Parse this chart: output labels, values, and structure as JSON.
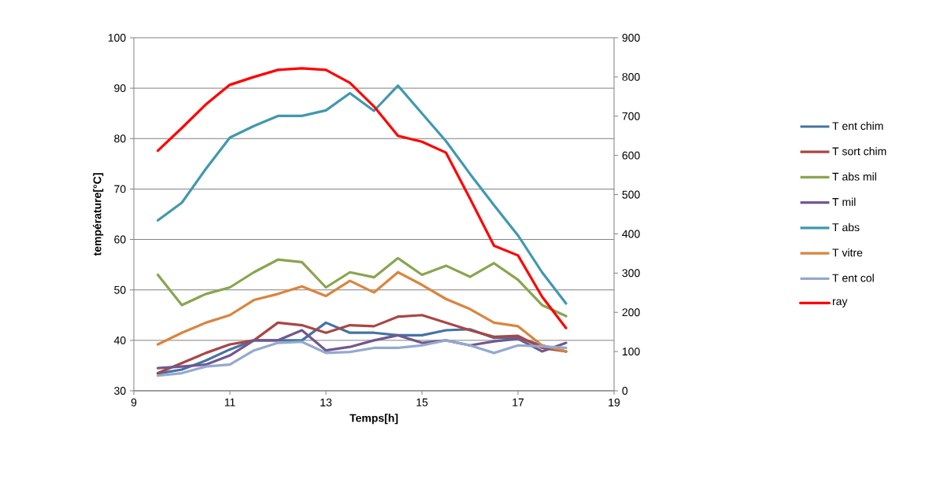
{
  "chart_data": {
    "type": "line",
    "xlabel": "Temps[h]",
    "ylabel": "température[°C]",
    "x": [
      9.5,
      10,
      10.5,
      11,
      11.5,
      12,
      12.5,
      13,
      13.5,
      14,
      14.5,
      15,
      15.5,
      16,
      16.5,
      17,
      17.5,
      18
    ],
    "xlim": [
      9,
      19
    ],
    "xticks": [
      9,
      11,
      13,
      15,
      17,
      19
    ],
    "ylim": [
      30,
      100
    ],
    "yticks": [
      30,
      40,
      50,
      60,
      70,
      80,
      90,
      100
    ],
    "y2lim": [
      0,
      900
    ],
    "y2ticks": [
      0,
      100,
      200,
      300,
      400,
      500,
      600,
      700,
      800,
      900
    ],
    "grid": "y",
    "legend": "right",
    "marker": "none",
    "line_style": "solid",
    "series": [
      {
        "name": "T ent chim",
        "color": "#4572a7",
        "values": [
          33.4,
          34.2,
          36,
          38.2,
          40,
          40,
          40,
          43.5,
          41.5,
          41.5,
          41,
          41,
          42,
          42.2,
          40.5,
          40.5,
          39,
          37.8
        ]
      },
      {
        "name": "T sort chim",
        "color": "#aa4643",
        "values": [
          33.5,
          35.5,
          37.5,
          39.2,
          40,
          43.5,
          43,
          41.5,
          43,
          42.8,
          44.7,
          45,
          43.5,
          42,
          40.7,
          40.9,
          38.5,
          37.8
        ]
      },
      {
        "name": "T abs mil",
        "color": "#89a54e",
        "values": [
          53,
          47,
          49.2,
          50.5,
          53.5,
          56,
          55.5,
          50.5,
          53.5,
          52.5,
          56.3,
          53,
          54.8,
          52.6,
          55.3,
          52,
          47,
          44.8
        ]
      },
      {
        "name": "T mil",
        "color": "#71588f",
        "values": [
          34.5,
          34.8,
          35.2,
          37,
          40,
          40,
          42,
          38,
          38.7,
          40,
          41,
          39.5,
          40,
          39,
          39.8,
          40.3,
          37.8,
          39.5
        ]
      },
      {
        "name": "T abs",
        "color": "#4198af",
        "values": [
          63.8,
          67.3,
          74,
          80.2,
          82.5,
          84.5,
          84.5,
          85.6,
          89,
          85.5,
          90.5,
          85,
          79.5,
          73,
          66.8,
          60.8,
          53.5,
          47.3
        ]
      },
      {
        "name": "T vitre",
        "color": "#db843d",
        "values": [
          39.2,
          41.5,
          43.5,
          45,
          48,
          49.2,
          50.7,
          48.8,
          51.8,
          49.5,
          53.5,
          51,
          48.2,
          46.2,
          43.5,
          42.8,
          39,
          37.8
        ]
      },
      {
        "name": "T ent col",
        "color": "#93a9cf",
        "values": [
          33,
          33.5,
          34.8,
          35.2,
          38,
          39.5,
          39.7,
          37.5,
          37.7,
          38.5,
          38.5,
          39,
          40,
          39,
          37.5,
          39,
          38.8,
          38.5
        ]
      },
      {
        "name": "ray",
        "color": "#ff0000",
        "axis": "y2",
        "values": [
          612,
          670,
          730,
          780,
          800,
          818,
          822,
          818,
          785,
          725,
          650,
          635,
          607,
          490,
          370,
          345,
          240,
          160
        ]
      }
    ]
  }
}
